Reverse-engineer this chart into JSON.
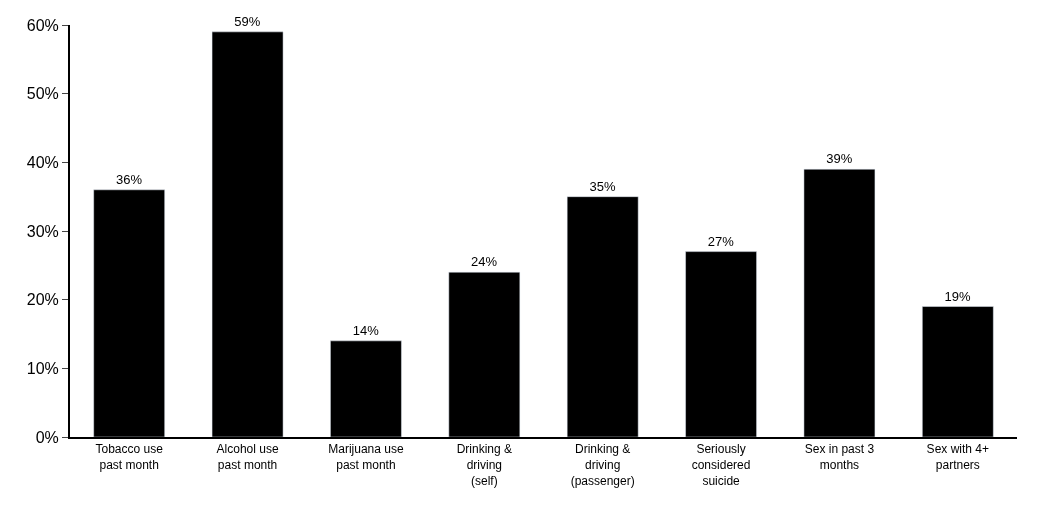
{
  "chart_data": {
    "type": "bar",
    "categories": [
      "Tobacco use past month",
      "Alcohol use past month",
      "Marijuana use past month",
      "Drinking & driving (self)",
      "Drinking & driving (passenger)",
      "Seriously considered suicide",
      "Sex in past 3 months",
      "Sex with 4+ partners"
    ],
    "values": [
      36,
      59,
      14,
      24,
      35,
      27,
      39,
      19
    ],
    "value_labels": [
      "36%",
      "59%",
      "14%",
      "24%",
      "35%",
      "27%",
      "39%",
      "19%"
    ],
    "color": "#000000",
    "ylim": [
      0,
      60
    ],
    "yticks": [
      {
        "value": 0,
        "label": "0%"
      },
      {
        "value": 10,
        "label": "10%"
      },
      {
        "value": 20,
        "label": "20%"
      },
      {
        "value": 30,
        "label": "30%"
      },
      {
        "value": 40,
        "label": "40%"
      },
      {
        "value": 50,
        "label": "50%"
      },
      {
        "value": 60,
        "label": "60%"
      }
    ],
    "legend": false
  }
}
